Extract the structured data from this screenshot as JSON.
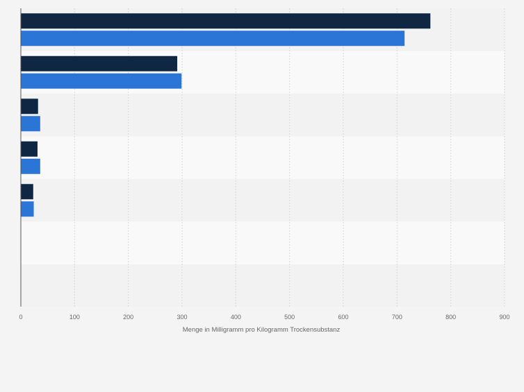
{
  "chart_data": {
    "type": "bar",
    "orientation": "horizontal",
    "categories": [
      "",
      "",
      "",
      "",
      "",
      "",
      ""
    ],
    "series": [
      {
        "values": [
          762,
          291,
          32,
          31,
          23,
          0,
          0
        ],
        "color": "#0f2742"
      },
      {
        "values": [
          714,
          299,
          36,
          36,
          24,
          0,
          0
        ],
        "color": "#2a75d6"
      }
    ],
    "xlabel": "Menge in Milligramm pro Kilogramm Trockensubstanz",
    "xlim": [
      0,
      900
    ],
    "xticks": [
      0,
      100,
      200,
      300,
      400,
      500,
      600,
      700,
      800,
      900
    ],
    "grid": "vertical-dashed",
    "legend": "none"
  }
}
